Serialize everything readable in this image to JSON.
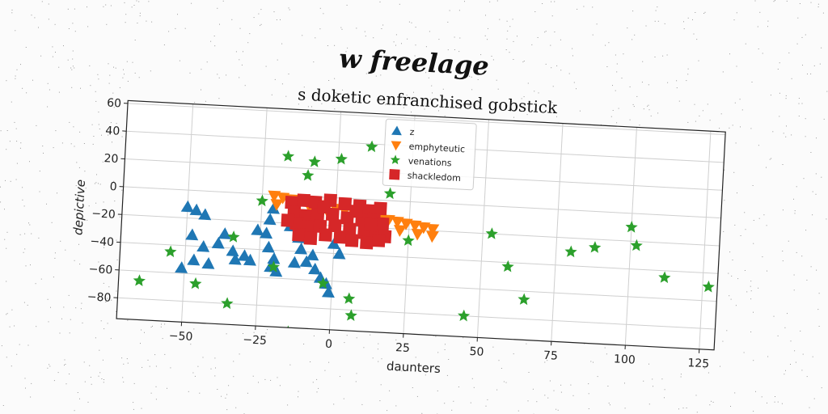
{
  "header": {
    "suptitle": "w freelage"
  },
  "chart_data": {
    "type": "scatter",
    "title": "s doketic enfranchised gobstick",
    "xlabel": "daunters",
    "ylabel": "depictive",
    "xlim": [
      -72,
      130
    ],
    "ylim": [
      -95,
      62
    ],
    "xticks": [
      -50,
      -25,
      0,
      25,
      50,
      75,
      100,
      125
    ],
    "yticks": [
      60,
      40,
      20,
      0,
      -20,
      -40,
      -60,
      -80
    ],
    "grid": true,
    "legend_position": "top-center",
    "series": [
      {
        "name": "z",
        "marker": "triangle-up",
        "color": "#1f77b4",
        "points": [
          [
            -50,
            -12
          ],
          [
            -47,
            -14
          ],
          [
            -44,
            -17
          ],
          [
            -48,
            -32
          ],
          [
            -44,
            -40
          ],
          [
            -51,
            -56
          ],
          [
            -47,
            -50
          ],
          [
            -42,
            -52
          ],
          [
            -39,
            -37
          ],
          [
            -34,
            -42
          ],
          [
            -30,
            -45
          ],
          [
            -28,
            -48
          ],
          [
            -33,
            -48
          ],
          [
            -23,
            -28
          ],
          [
            -22,
            -18
          ],
          [
            -21,
            -10
          ],
          [
            -22,
            -38
          ],
          [
            -20,
            -46
          ],
          [
            -21,
            -52
          ],
          [
            -19,
            -55
          ],
          [
            -12,
            -30
          ],
          [
            -11,
            -38
          ],
          [
            -13,
            -48
          ],
          [
            -9,
            -47
          ],
          [
            -7,
            -42
          ],
          [
            -6,
            -52
          ],
          [
            -4,
            -58
          ],
          [
            -2,
            -62
          ],
          [
            -1,
            -68
          ],
          [
            0,
            -33
          ],
          [
            2,
            -40
          ],
          [
            -8,
            -30
          ],
          [
            -15,
            -22
          ],
          [
            -26,
            -26
          ],
          [
            -37,
            -30
          ]
        ]
      },
      {
        "name": "emphyteutic",
        "marker": "triangle-down",
        "color": "#ff7f0e",
        "points": [
          [
            -21,
            -1
          ],
          [
            -18,
            -2
          ],
          [
            -15,
            -3
          ],
          [
            -12,
            -4
          ],
          [
            -9,
            -5
          ],
          [
            -6,
            -6
          ],
          [
            -3,
            -7
          ],
          [
            0,
            -8
          ],
          [
            3,
            -9
          ],
          [
            6,
            -10
          ],
          [
            9,
            -11
          ],
          [
            12,
            -12
          ],
          [
            15,
            -13
          ],
          [
            18,
            -14
          ],
          [
            21,
            -15
          ],
          [
            24,
            -16
          ],
          [
            27,
            -17
          ],
          [
            30,
            -18
          ],
          [
            33,
            -19
          ],
          [
            -20,
            -7
          ],
          [
            -14,
            -9
          ],
          [
            -8,
            -11
          ],
          [
            -2,
            -13
          ],
          [
            4,
            -15
          ],
          [
            10,
            -17
          ],
          [
            16,
            -19
          ],
          [
            22,
            -21
          ],
          [
            28,
            -23
          ],
          [
            33,
            -24
          ]
        ]
      },
      {
        "name": "venations",
        "marker": "star",
        "color": "#2ca02c",
        "points": [
          [
            -65,
            -67
          ],
          [
            -55,
            -45
          ],
          [
            -46,
            -67
          ],
          [
            -35,
            -80
          ],
          [
            -34,
            -32
          ],
          [
            -25,
            -5
          ],
          [
            -20,
            -52
          ],
          [
            -17,
            28
          ],
          [
            -10,
            15
          ],
          [
            -8,
            25
          ],
          [
            -3,
            -62
          ],
          [
            1,
            28
          ],
          [
            6,
            -72
          ],
          [
            7,
            -84
          ],
          [
            11,
            38
          ],
          [
            11,
            -100
          ],
          [
            18,
            5
          ],
          [
            25,
            -28
          ],
          [
            45,
            -80
          ],
          [
            53,
            -20
          ],
          [
            59,
            -43
          ],
          [
            65,
            -66
          ],
          [
            80,
            -30
          ],
          [
            88,
            -26
          ],
          [
            100,
            -10
          ],
          [
            102,
            -23
          ],
          [
            112,
            -45
          ],
          [
            127,
            -50
          ],
          [
            -14,
            -98
          ]
        ]
      },
      {
        "name": "shackledom",
        "marker": "square",
        "color": "#d62728",
        "points": [
          [
            -15,
            -5
          ],
          [
            -11,
            -3
          ],
          [
            -7,
            -4
          ],
          [
            -2,
            -2
          ],
          [
            3,
            -4
          ],
          [
            8,
            -5
          ],
          [
            11,
            -8
          ],
          [
            15,
            -6
          ],
          [
            -14,
            -12
          ],
          [
            -10,
            -14
          ],
          [
            -6,
            -13
          ],
          [
            -1,
            -12
          ],
          [
            4,
            -14
          ],
          [
            9,
            -15
          ],
          [
            13,
            -14
          ],
          [
            16,
            -17
          ],
          [
            -13,
            -20
          ],
          [
            -9,
            -22
          ],
          [
            -5,
            -21
          ],
          [
            0,
            -20
          ],
          [
            5,
            -22
          ],
          [
            10,
            -24
          ],
          [
            14,
            -23
          ],
          [
            17,
            -26
          ],
          [
            -12,
            -28
          ],
          [
            -8,
            -30
          ],
          [
            -3,
            -27
          ],
          [
            2,
            -28
          ],
          [
            6,
            -30
          ],
          [
            11,
            -31
          ],
          [
            15,
            -29
          ],
          [
            -16,
            -18
          ],
          [
            -4,
            -7
          ],
          [
            7,
            -9
          ],
          [
            12,
            -18
          ]
        ]
      }
    ]
  }
}
